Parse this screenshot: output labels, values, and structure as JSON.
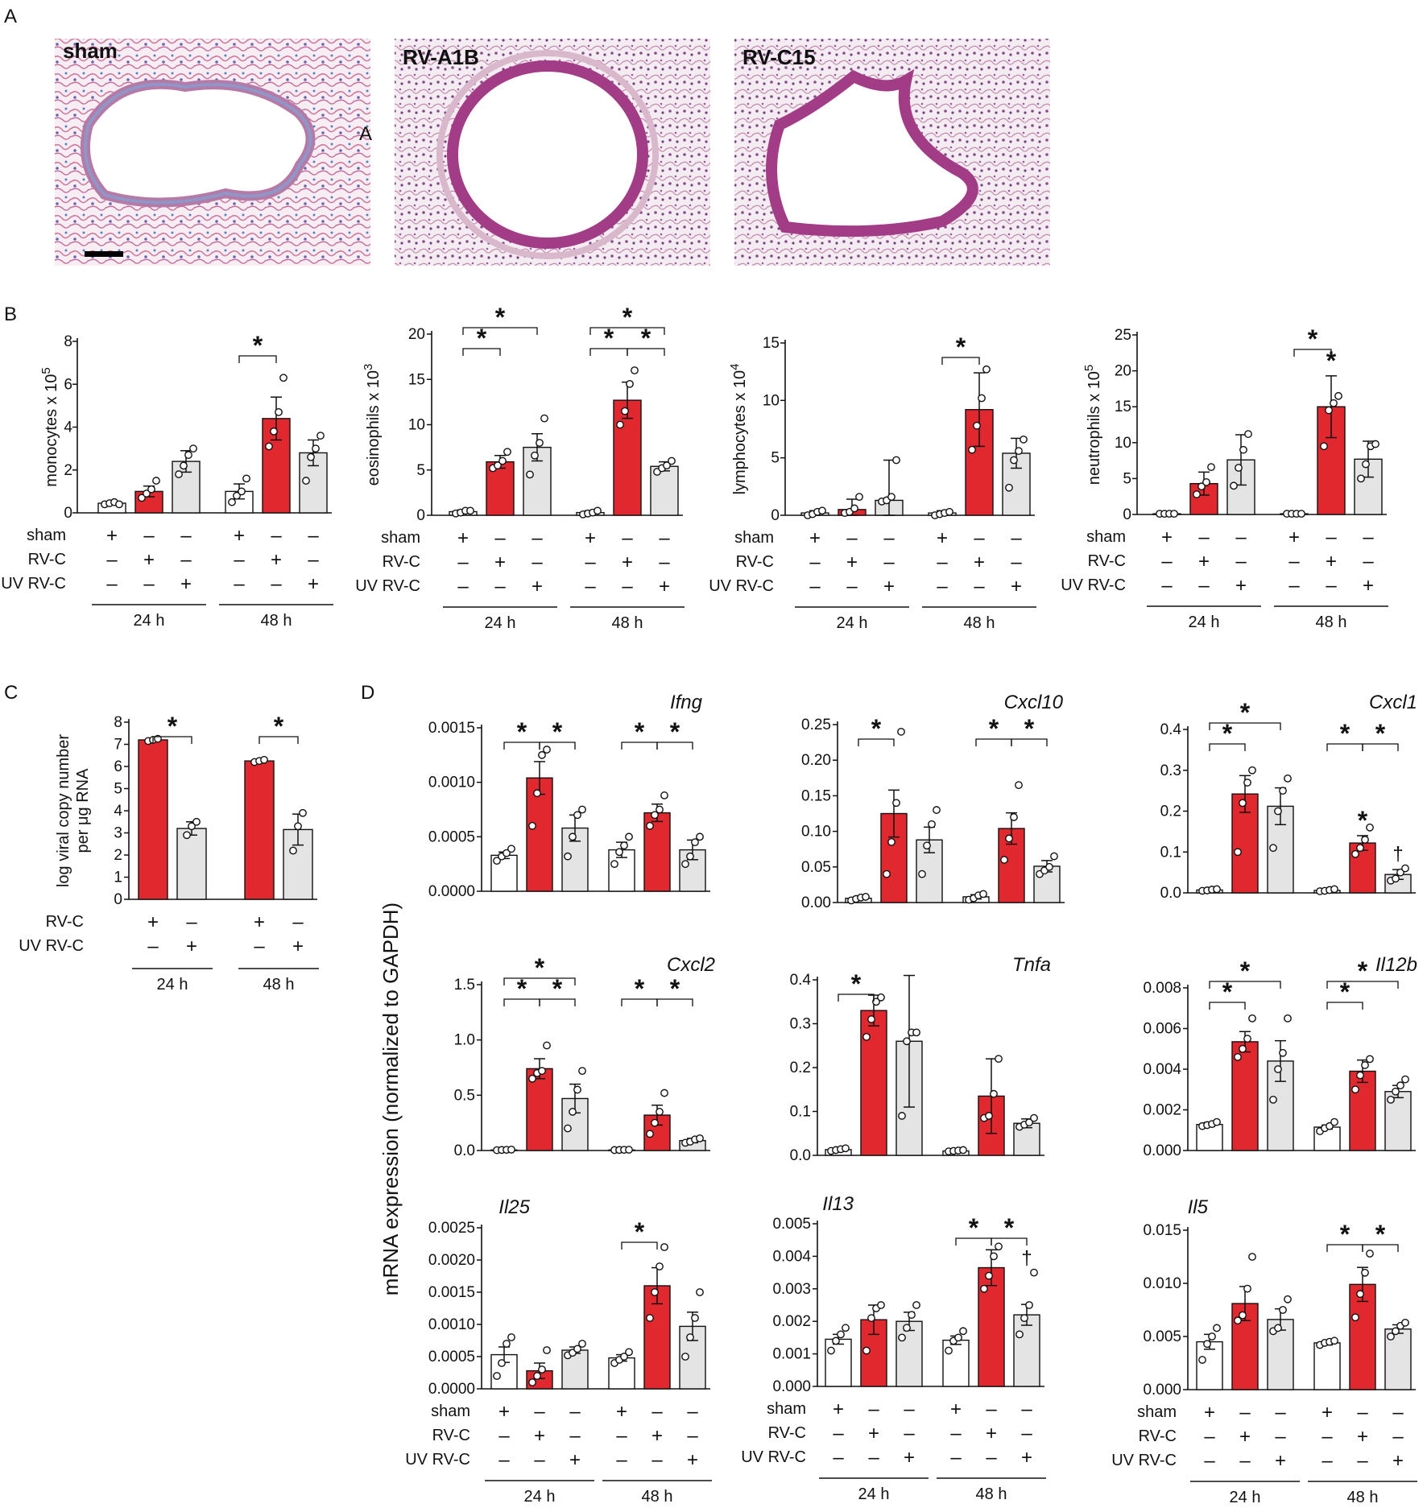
{
  "panels": {
    "A": "A",
    "B": "B",
    "C": "C",
    "D": "D"
  },
  "micrographs": [
    {
      "label": "sham",
      "inset_letter": "A"
    },
    {
      "label": "RV-A1B",
      "inset_letter": ""
    },
    {
      "label": "RV-C15",
      "inset_letter": ""
    }
  ],
  "condition_rows": {
    "sham": "sham",
    "rvc": "RV-C",
    "uvrvc": "UV RV-C",
    "plus": "+",
    "minus": "–",
    "t24": "24 h",
    "t48": "48 h"
  },
  "d_ylabel": "mRNA expression (normalized to GAPDH)",
  "colors": {
    "sham": "#ffffff",
    "rvc": "#e2282f",
    "uvrvc": "#e4e4e4",
    "stroke": "#111111"
  },
  "chart_data": [
    {
      "id": "B1",
      "type": "bar",
      "ylabel": "monocytes x 10",
      "ylabel_exp": "5",
      "yticks": [
        "0",
        "2",
        "4",
        "6",
        "8"
      ],
      "ylim": [
        0,
        8
      ],
      "values": [
        0.45,
        1.0,
        2.4,
        1.0,
        4.4,
        2.8
      ],
      "errors": [
        0.05,
        0.25,
        0.5,
        0.35,
        1.0,
        0.6
      ],
      "points": [
        [
          0.4,
          0.45,
          0.5,
          0.4
        ],
        [
          0.7,
          0.9,
          1.1,
          1.5
        ],
        [
          1.8,
          2.2,
          2.7,
          3.0
        ],
        [
          0.5,
          0.8,
          1.0,
          1.6
        ],
        [
          3.1,
          3.8,
          4.7,
          6.3
        ],
        [
          1.5,
          2.6,
          3.0,
          3.6
        ]
      ],
      "sig": [
        {
          "from": 3,
          "to": 4,
          "level": 1
        }
      ],
      "groupstars": [],
      "daggers": [],
      "title": ""
    },
    {
      "id": "B2",
      "type": "bar",
      "ylabel": "eosinophils x 10",
      "ylabel_exp": "3",
      "yticks": [
        "0",
        "5",
        "10",
        "15",
        "20"
      ],
      "ylim": [
        0,
        20
      ],
      "values": [
        0.4,
        5.9,
        7.5,
        0.3,
        12.7,
        5.4
      ],
      "errors": [
        0.2,
        0.7,
        1.5,
        0.2,
        2.0,
        0.5
      ],
      "points": [
        [
          0.2,
          0.3,
          0.5,
          0.5
        ],
        [
          5.2,
          5.5,
          6.0,
          7.0
        ],
        [
          4.5,
          6.6,
          8.0,
          10.7
        ],
        [
          0.1,
          0.2,
          0.3,
          0.5
        ],
        [
          10.0,
          11.5,
          14.5,
          16.0
        ],
        [
          4.8,
          5.2,
          5.5,
          6.0
        ]
      ],
      "sig": [
        {
          "from": 0,
          "to": 1,
          "level": 1
        },
        {
          "from": 0,
          "to": 2,
          "level": 2
        },
        {
          "from": 3,
          "to": 4,
          "level": 1
        },
        {
          "from": 4,
          "to": 5,
          "level": 1
        },
        {
          "from": 3,
          "to": 5,
          "level": 2
        }
      ],
      "groupstars": [],
      "daggers": [],
      "title": ""
    },
    {
      "id": "B3",
      "type": "bar",
      "ylabel": "lymphocytes x 10",
      "ylabel_exp": "4",
      "yticks": [
        "0",
        "5",
        "10",
        "15"
      ],
      "ylim": [
        0,
        15
      ],
      "values": [
        0.2,
        0.5,
        1.3,
        0.2,
        9.2,
        5.4
      ],
      "errors": [
        0.2,
        0.9,
        3.5,
        0.2,
        3.2,
        1.3
      ],
      "points": [
        [
          0.0,
          0.1,
          0.3,
          0.4
        ],
        [
          0.2,
          0.3,
          0.6,
          1.6
        ],
        [
          1.2,
          1.3,
          1.6,
          4.8
        ],
        [
          0.0,
          0.1,
          0.2,
          0.3
        ],
        [
          5.7,
          7.8,
          10.2,
          12.7
        ],
        [
          2.4,
          4.8,
          5.6,
          6.6
        ]
      ],
      "sig": [
        {
          "from": 3,
          "to": 4,
          "level": 1
        }
      ],
      "groupstars": [],
      "daggers": [],
      "title": ""
    },
    {
      "id": "B4",
      "type": "bar",
      "ylabel": "neutrophils x 10",
      "ylabel_exp": "5",
      "yticks": [
        "0",
        "5",
        "10",
        "15",
        "20",
        "25"
      ],
      "ylim": [
        0,
        25
      ],
      "values": [
        0.1,
        4.3,
        7.6,
        0.1,
        15.0,
        7.7
      ],
      "errors": [
        0.1,
        1.6,
        3.5,
        0.1,
        4.3,
        2.5
      ],
      "points": [
        [
          0.1,
          0.1,
          0.1,
          0.1
        ],
        [
          2.8,
          3.9,
          4.5,
          6.6
        ],
        [
          4.0,
          6.5,
          9.0,
          11.2
        ],
        [
          0.1,
          0.1,
          0.1,
          0.1
        ],
        [
          9.5,
          14.5,
          15.5,
          16.5
        ],
        [
          5.0,
          7.0,
          9.5,
          9.8
        ]
      ],
      "sig": [
        {
          "from": 3,
          "to": 4,
          "level": 1
        }
      ],
      "groupstars": [
        4
      ],
      "daggers": [],
      "title": ""
    },
    {
      "id": "C",
      "type": "bar",
      "ylabel": "log viral copy number",
      "ylabel2": "per μg RNA",
      "yticks": [
        "0",
        "1",
        "2",
        "3",
        "4",
        "5",
        "6",
        "7",
        "8"
      ],
      "ylim": [
        0,
        8
      ],
      "values": [
        7.2,
        3.2,
        6.25,
        3.15
      ],
      "errors": [
        0.05,
        0.3,
        0.05,
        0.7
      ],
      "points": [
        [
          7.15,
          7.2,
          7.25
        ],
        [
          2.9,
          3.3,
          3.5
        ],
        [
          6.2,
          6.25,
          6.3
        ],
        [
          2.2,
          3.3,
          3.9
        ]
      ],
      "sig": [
        {
          "from": 0,
          "to": 1,
          "level": 1
        },
        {
          "from": 2,
          "to": 3,
          "level": 1
        }
      ],
      "groupstars": [],
      "daggers": [],
      "title": ""
    },
    {
      "id": "Ifng",
      "type": "bar",
      "title": "Ifng",
      "yticks": [
        "0.0000",
        "0.0005",
        "0.0010",
        "0.0015"
      ],
      "ylim": [
        0,
        0.0015
      ],
      "values": [
        0.00033,
        0.00104,
        0.00058,
        0.00038,
        0.00072,
        0.00038
      ],
      "errors": [
        3e-05,
        0.00015,
        0.00012,
        7e-05,
        8e-05,
        9e-05
      ],
      "points": [
        [
          0.00028,
          0.00032,
          0.00035,
          0.00039
        ],
        [
          0.0006,
          0.0009,
          0.00125,
          0.0013
        ],
        [
          0.00032,
          0.0005,
          0.0007,
          0.00075
        ],
        [
          0.00025,
          0.00036,
          0.00042,
          0.0005
        ],
        [
          0.0006,
          0.0007,
          0.00075,
          0.00088
        ],
        [
          0.00025,
          0.00032,
          0.00045,
          0.0005
        ]
      ],
      "sig": [
        {
          "from": 0,
          "to": 1,
          "level": 1
        },
        {
          "from": 1,
          "to": 2,
          "level": 1
        },
        {
          "from": 3,
          "to": 4,
          "level": 1
        },
        {
          "from": 4,
          "to": 5,
          "level": 1
        }
      ],
      "groupstars": [],
      "daggers": []
    },
    {
      "id": "Cxcl10",
      "type": "bar",
      "title": "Cxcl10",
      "yticks": [
        "0.00",
        "0.05",
        "0.10",
        "0.15",
        "0.20",
        "0.25"
      ],
      "ylim": [
        0,
        0.25
      ],
      "values": [
        0.006,
        0.125,
        0.088,
        0.008,
        0.104,
        0.051
      ],
      "errors": [
        0.002,
        0.033,
        0.018,
        0.003,
        0.022,
        0.008
      ],
      "points": [
        [
          0.003,
          0.005,
          0.007,
          0.008
        ],
        [
          0.04,
          0.085,
          0.14,
          0.24
        ],
        [
          0.04,
          0.08,
          0.11,
          0.13
        ],
        [
          0.004,
          0.006,
          0.01,
          0.012
        ],
        [
          0.06,
          0.09,
          0.12,
          0.165
        ],
        [
          0.04,
          0.045,
          0.05,
          0.065
        ]
      ],
      "sig": [
        {
          "from": 0,
          "to": 1,
          "level": 1
        },
        {
          "from": 3,
          "to": 4,
          "level": 1
        },
        {
          "from": 4,
          "to": 5,
          "level": 1
        }
      ],
      "groupstars": [],
      "daggers": []
    },
    {
      "id": "Cxcl1",
      "type": "bar",
      "title": "Cxcl1",
      "yticks": [
        "0.0",
        "0.1",
        "0.2",
        "0.3",
        "0.4"
      ],
      "ylim": [
        0,
        0.4
      ],
      "values": [
        0.007,
        0.242,
        0.212,
        0.006,
        0.122,
        0.045
      ],
      "errors": [
        0.002,
        0.045,
        0.045,
        0.002,
        0.018,
        0.012
      ],
      "points": [
        [
          0.005,
          0.006,
          0.008,
          0.009
        ],
        [
          0.1,
          0.22,
          0.27,
          0.3
        ],
        [
          0.11,
          0.2,
          0.25,
          0.28
        ],
        [
          0.004,
          0.005,
          0.007,
          0.009
        ],
        [
          0.095,
          0.11,
          0.13,
          0.16
        ],
        [
          0.03,
          0.035,
          0.05,
          0.06
        ]
      ],
      "sig": [
        {
          "from": 0,
          "to": 1,
          "level": 1
        },
        {
          "from": 0,
          "to": 2,
          "level": 2
        },
        {
          "from": 3,
          "to": 4,
          "level": 1
        },
        {
          "from": 4,
          "to": 5,
          "level": 1
        }
      ],
      "groupstars": [
        4
      ],
      "daggers": [
        5
      ]
    },
    {
      "id": "Cxcl2",
      "type": "bar",
      "title": "Cxcl2",
      "yticks": [
        "0.0",
        "0.5",
        "1.0",
        "1.5"
      ],
      "ylim": [
        0,
        1.5
      ],
      "values": [
        0.005,
        0.74,
        0.47,
        0.005,
        0.32,
        0.09
      ],
      "errors": [
        0.004,
        0.09,
        0.13,
        0.004,
        0.09,
        0.02
      ],
      "points": [
        [
          0.003,
          0.005,
          0.006,
          0.008
        ],
        [
          0.65,
          0.7,
          0.72,
          0.95
        ],
        [
          0.2,
          0.35,
          0.55,
          0.72
        ],
        [
          0.004,
          0.005,
          0.006,
          0.007
        ],
        [
          0.15,
          0.25,
          0.35,
          0.52
        ],
        [
          0.07,
          0.08,
          0.1,
          0.11
        ]
      ],
      "sig": [
        {
          "from": 0,
          "to": 1,
          "level": 1
        },
        {
          "from": 1,
          "to": 2,
          "level": 1
        },
        {
          "from": 0,
          "to": 2,
          "level": 2
        },
        {
          "from": 3,
          "to": 4,
          "level": 1
        },
        {
          "from": 4,
          "to": 5,
          "level": 1
        }
      ],
      "groupstars": [],
      "daggers": []
    },
    {
      "id": "Tnfa",
      "type": "bar",
      "title": "Tnfa",
      "yticks": [
        "0.0",
        "0.1",
        "0.2",
        "0.3",
        "0.4"
      ],
      "ylim": [
        0,
        0.4
      ],
      "values": [
        0.013,
        0.33,
        0.26,
        0.01,
        0.135,
        0.073
      ],
      "errors": [
        0.002,
        0.035,
        0.15,
        0.002,
        0.085,
        0.01
      ],
      "points": [
        [
          0.01,
          0.012,
          0.014,
          0.016
        ],
        [
          0.27,
          0.31,
          0.35,
          0.36
        ],
        [
          0.09,
          0.26,
          0.28,
          0.28
        ],
        [
          0.009,
          0.01,
          0.011,
          0.012
        ],
        [
          0.085,
          0.09,
          0.14,
          0.22
        ],
        [
          0.065,
          0.07,
          0.075,
          0.085
        ]
      ],
      "sig": [
        {
          "from": 0,
          "to": 1,
          "level": 1
        }
      ],
      "groupstars": [],
      "daggers": []
    },
    {
      "id": "Il12b",
      "type": "bar",
      "title": "Il12b",
      "yticks": [
        "0.000",
        "0.002",
        "0.004",
        "0.006",
        "0.008"
      ],
      "ylim": [
        0,
        0.008
      ],
      "values": [
        0.00128,
        0.00535,
        0.0044,
        0.00115,
        0.0039,
        0.0029
      ],
      "errors": [
        0.0001,
        0.0005,
        0.001,
        0.0001,
        0.00055,
        0.0003
      ],
      "points": [
        [
          0.0012,
          0.00125,
          0.0013,
          0.0014
        ],
        [
          0.0046,
          0.005,
          0.0055,
          0.0065
        ],
        [
          0.0025,
          0.004,
          0.0048,
          0.0065
        ],
        [
          0.00095,
          0.0011,
          0.0012,
          0.0014
        ],
        [
          0.003,
          0.0037,
          0.0042,
          0.0045
        ],
        [
          0.0025,
          0.0029,
          0.0032,
          0.0035
        ]
      ],
      "sig": [
        {
          "from": 0,
          "to": 1,
          "level": 1
        },
        {
          "from": 0,
          "to": 2,
          "level": 2
        },
        {
          "from": 3,
          "to": 4,
          "level": 1
        },
        {
          "from": 3,
          "to": 5,
          "level": 2
        }
      ],
      "groupstars": [],
      "daggers": []
    },
    {
      "id": "Il25",
      "type": "bar",
      "title": "Il25",
      "yticks": [
        "0.0000",
        "0.0005",
        "0.0010",
        "0.0015",
        "0.0020",
        "0.0025"
      ],
      "ylim": [
        0,
        0.0025
      ],
      "values": [
        0.00053,
        0.00028,
        0.0006,
        0.00048,
        0.0016,
        0.00097
      ],
      "errors": [
        0.00012,
        0.00012,
        5e-05,
        5e-05,
        0.00028,
        0.00022
      ],
      "points": [
        [
          0.0002,
          0.0004,
          0.0007,
          0.0008
        ],
        [
          0.0001,
          0.0002,
          0.0003,
          0.0006
        ],
        [
          0.00052,
          0.00056,
          0.00062,
          0.0007
        ],
        [
          0.0004,
          0.00045,
          0.0005,
          0.00057
        ],
        [
          0.0011,
          0.0015,
          0.0019,
          0.0022
        ],
        [
          0.0005,
          0.0008,
          0.0011,
          0.0015
        ]
      ],
      "sig": [
        {
          "from": 3,
          "to": 4,
          "level": 1
        }
      ],
      "groupstars": [],
      "daggers": []
    },
    {
      "id": "Il13",
      "type": "bar",
      "title": "Il13",
      "yticks": [
        "0.000",
        "0.001",
        "0.002",
        "0.003",
        "0.004",
        "0.005"
      ],
      "ylim": [
        0,
        0.005
      ],
      "values": [
        0.00145,
        0.00205,
        0.002,
        0.00142,
        0.00365,
        0.0022
      ],
      "errors": [
        0.00015,
        0.00045,
        0.00028,
        0.00013,
        0.00055,
        0.00032
      ],
      "points": [
        [
          0.0011,
          0.0014,
          0.0016,
          0.0018
        ],
        [
          0.0011,
          0.0021,
          0.0024,
          0.0025
        ],
        [
          0.0015,
          0.0018,
          0.0022,
          0.0025
        ],
        [
          0.0011,
          0.0014,
          0.0015,
          0.0017
        ],
        [
          0.003,
          0.0034,
          0.004,
          0.0043
        ],
        [
          0.0016,
          0.0021,
          0.0025,
          0.0035
        ]
      ],
      "sig": [
        {
          "from": 3,
          "to": 4,
          "level": 1
        },
        {
          "from": 4,
          "to": 5,
          "level": 1
        }
      ],
      "groupstars": [],
      "daggers": [
        5
      ]
    },
    {
      "id": "Il5",
      "type": "bar",
      "title": "Il5",
      "yticks": [
        "0.000",
        "0.005",
        "0.010",
        "0.015"
      ],
      "ylim": [
        0,
        0.015
      ],
      "values": [
        0.0045,
        0.0081,
        0.0066,
        0.0044,
        0.0099,
        0.0057
      ],
      "errors": [
        0.0007,
        0.0016,
        0.001,
        0.0002,
        0.0016,
        0.0004
      ],
      "points": [
        [
          0.0028,
          0.0043,
          0.005,
          0.0058
        ],
        [
          0.0065,
          0.007,
          0.0095,
          0.0125
        ],
        [
          0.0055,
          0.0058,
          0.0075,
          0.0085
        ],
        [
          0.0042,
          0.0044,
          0.0045,
          0.0046
        ],
        [
          0.0068,
          0.009,
          0.011,
          0.0128
        ],
        [
          0.005,
          0.0055,
          0.006,
          0.0063
        ]
      ],
      "sig": [
        {
          "from": 3,
          "to": 4,
          "level": 1
        },
        {
          "from": 4,
          "to": 5,
          "level": 1
        }
      ],
      "groupstars": [],
      "daggers": []
    }
  ]
}
